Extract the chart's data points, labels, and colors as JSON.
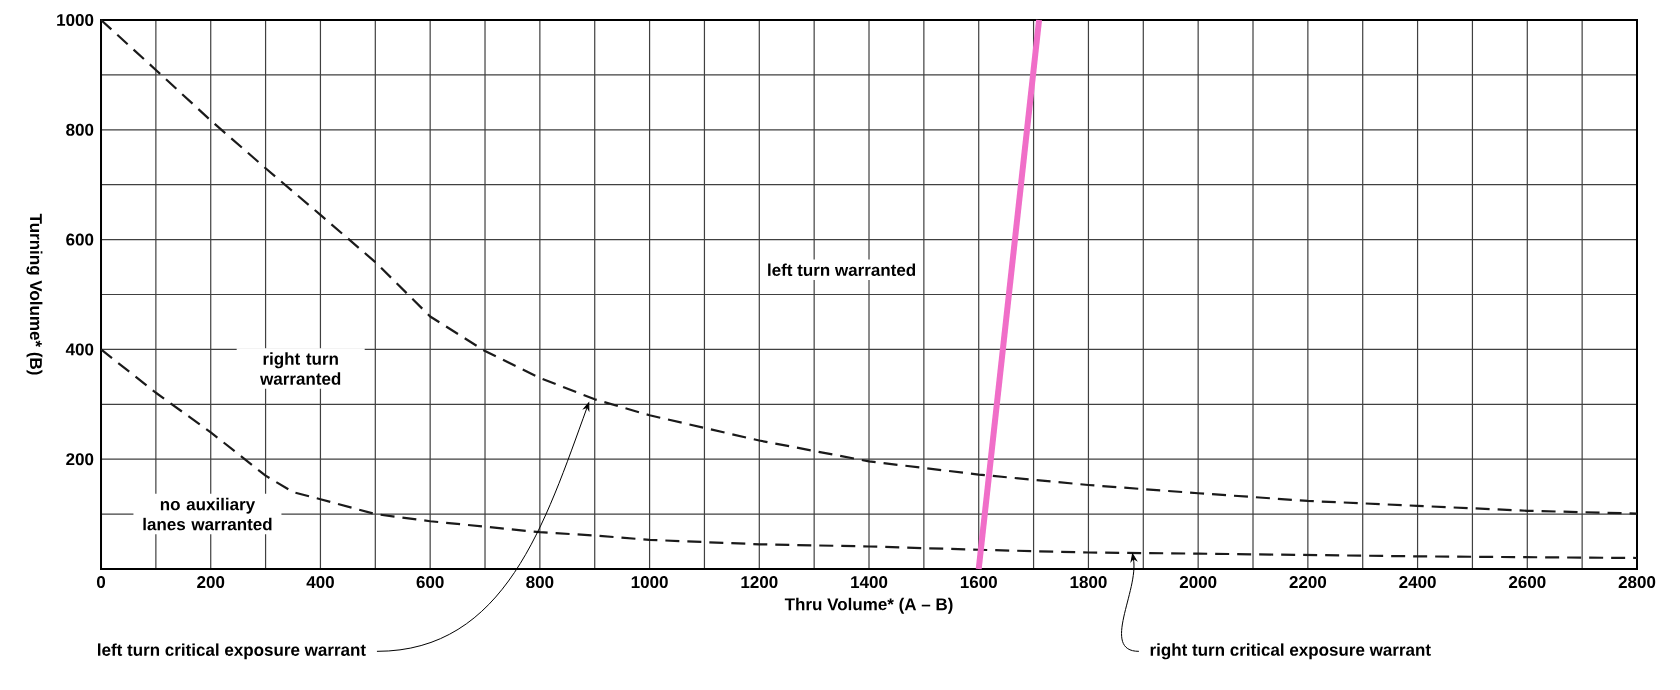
{
  "chart_data": {
    "type": "line",
    "xlabel": "Thru Volume* (A – B)",
    "ylabel": "Turning Volume* (B)",
    "xlim": [
      0,
      2800
    ],
    "ylim": [
      0,
      1000
    ],
    "xticks": [
      0,
      {
        "value": 100,
        "label": null
      },
      200,
      {
        "value": 300,
        "label": null
      },
      400,
      {
        "value": 500,
        "label": null
      },
      600,
      {
        "value": 700,
        "label": null
      },
      800,
      {
        "value": 900,
        "label": null
      },
      1000,
      {
        "value": 1100,
        "label": null
      },
      1200,
      {
        "value": 1300,
        "label": null
      },
      1400,
      {
        "value": 1500,
        "label": null
      },
      1600,
      {
        "value": 1700,
        "label": null
      },
      1800,
      {
        "value": 1900,
        "label": null
      },
      2000,
      {
        "value": 2100,
        "label": null
      },
      2200,
      {
        "value": 2300,
        "label": null
      },
      2400,
      {
        "value": 2500,
        "label": null
      },
      2600,
      {
        "value": 2700,
        "label": null
      },
      2800
    ],
    "yticks": [
      {
        "value": 0,
        "label": null
      },
      {
        "value": 100,
        "label": null
      },
      200,
      {
        "value": 300,
        "label": null
      },
      400,
      {
        "value": 500,
        "label": null
      },
      600,
      {
        "value": 700,
        "label": null
      },
      800,
      {
        "value": 900,
        "label": null
      },
      1000
    ],
    "grid": true,
    "marker": "none",
    "line_style": "dashed",
    "series": [
      {
        "color": "#1a1a1a",
        "x": [
          0,
          100,
          200,
          300,
          400,
          500,
          600,
          700,
          800,
          900,
          1000,
          1200,
          1400,
          1600,
          1800,
          2000,
          2200,
          2400,
          2600,
          2800
        ],
        "values": [
          1000,
          909,
          817,
          730,
          645,
          559,
          460,
          397,
          348,
          309,
          280,
          234,
          196,
          172,
          153,
          138,
          124,
          115,
          106,
          101
        ]
      },
      {
        "color": "#1a1a1a",
        "x": [
          0,
          100,
          200,
          300,
          350,
          400,
          500,
          600,
          700,
          800,
          900,
          1000,
          1200,
          1400,
          1600,
          1800,
          2000,
          2400,
          2800
        ],
        "values": [
          400,
          321,
          249,
          170,
          140,
          127,
          100,
          87,
          77,
          67,
          61,
          53,
          45,
          41,
          35,
          30,
          28,
          23,
          20
        ]
      },
      {
        "color": "#f06ec8",
        "line_style": "solid",
        "x": [
          1600,
          1710
        ],
        "values": [
          0,
          1000
        ]
      }
    ],
    "annotations": [
      "left turn warranted",
      "right turn warranted",
      "no auxiliary lanes warranted",
      {
        "text": "left turn critical exposure warrant",
        "x": 890,
        "y": 305
      },
      {
        "text": "right turn critical exposure warrant",
        "x": 1880,
        "y": 30
      }
    ]
  }
}
